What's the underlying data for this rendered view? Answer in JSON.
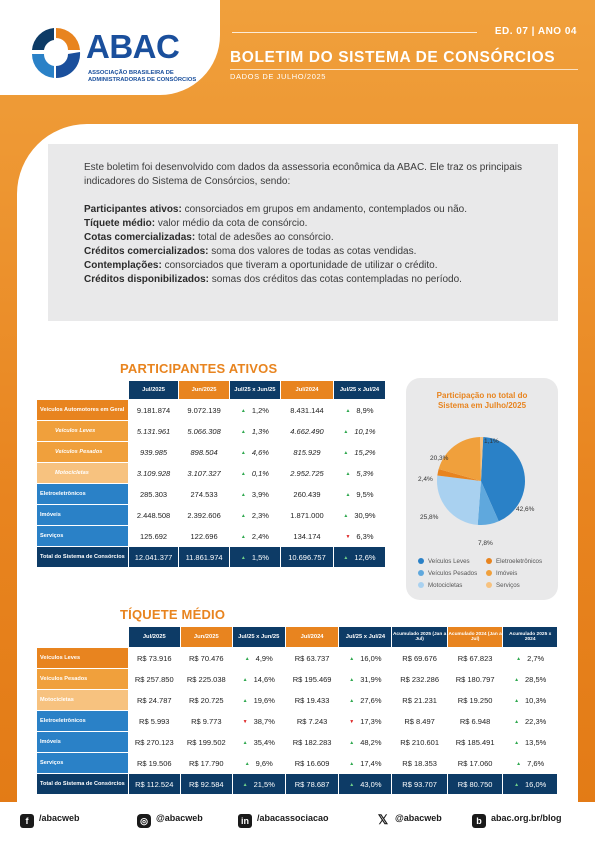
{
  "header": {
    "logo_name": "ABAC",
    "logo_sub_1": "ASSOCIAÇÃO BRASILEIRA DE",
    "logo_sub_2": "ADMINISTRADORAS DE CONSÓRCIOS",
    "edition": "ED. 07 | ANO 04",
    "title": "BOLETIM DO SISTEMA DE CONSÓRCIOS",
    "subtitle": "DADOS DE JULHO/2025"
  },
  "intro": {
    "lead": "Este boletim foi desenvolvido com dados da assessoria econômica da ABAC. Ele traz os principais indicadores do Sistema de Consórcios, sendo:",
    "defs": [
      {
        "term": "Participantes ativos:",
        "text": " consorciados em grupos em andamento, contemplados ou não."
      },
      {
        "term": "Tíquete médio:",
        "text": " valor médio da cota de consórcio."
      },
      {
        "term": "Cotas comercializadas:",
        "text": " total de adesões ao consórcio."
      },
      {
        "term": "Créditos comercializados:",
        "text": " soma dos valores de todas as cotas vendidas."
      },
      {
        "term": "Contemplações:",
        "text": " consorciados que tiveram a oportunidade de utilizar o crédito."
      },
      {
        "term": "Créditos disponibilizados:",
        "text": " somas dos créditos das cotas contempladas no período."
      }
    ]
  },
  "participantes": {
    "title": "PARTICIPANTES ATIVOS",
    "headers": [
      "Jul/2025",
      "Jun/2025",
      "Jul/25 x Jun/25",
      "Jul/2024",
      "Jul/25 x Jul/24"
    ],
    "rows": [
      {
        "label": "Veículos Automotores em Geral",
        "v": [
          "9.181.874",
          "9.072.139",
          "1,2%",
          "8.431.144",
          "8,9%"
        ],
        "d1": "up",
        "d2": "up"
      },
      {
        "label": "Veículos Leves",
        "v": [
          "5.131.961",
          "5.066.308",
          "1,3%",
          "4.662.490",
          "10,1%"
        ],
        "d1": "up",
        "d2": "up"
      },
      {
        "label": "Veículos Pesados",
        "v": [
          "939.985",
          "898.504",
          "4,6%",
          "815.929",
          "15,2%"
        ],
        "d1": "up",
        "d2": "up"
      },
      {
        "label": "Motocicletas",
        "v": [
          "3.109.928",
          "3.107.327",
          "0,1%",
          "2.952.725",
          "5,3%"
        ],
        "d1": "up",
        "d2": "up"
      },
      {
        "label": "Eletroeletrônicos",
        "v": [
          "285.303",
          "274.533",
          "3,9%",
          "260.439",
          "9,5%"
        ],
        "d1": "up",
        "d2": "up"
      },
      {
        "label": "Imóveis",
        "v": [
          "2.448.508",
          "2.392.606",
          "2,3%",
          "1.871.000",
          "30,9%"
        ],
        "d1": "up",
        "d2": "up"
      },
      {
        "label": "Serviços",
        "v": [
          "125.692",
          "122.696",
          "2,4%",
          "134.174",
          "6,3%"
        ],
        "d1": "up",
        "d2": "dn"
      },
      {
        "label": "Total do Sistema de Consórcios",
        "v": [
          "12.041.377",
          "11.861.974",
          "1,5%",
          "10.696.757",
          "12,6%"
        ],
        "d1": "up",
        "d2": "up"
      }
    ]
  },
  "pie": {
    "title_1": "Participação no total do",
    "title_2": "Sistema em Julho/2025",
    "labels": [
      "42,6%",
      "7,8%",
      "25,8%",
      "2,4%",
      "20,3%",
      "1,1%"
    ],
    "legend": [
      "Veículos Leves",
      "Eletroeletrônicos",
      "Veículos Pesados",
      "Imóveis",
      "Motocicletas",
      "Serviços"
    ],
    "colors": [
      "#2a81c7",
      "#e8841f",
      "#5fa8dd",
      "#f0a03c",
      "#a9d1f0",
      "#f7c27f"
    ]
  },
  "ticket": {
    "title": "TÍQUETE MÉDIO",
    "headers": [
      "Jul/2025",
      "Jun/2025",
      "Jul/25 x Jun/25",
      "Jul/2024",
      "Jul/25 x Jul/24",
      "Acumulado 2025 (Jan a Jul)",
      "Acumulado 2024 (Jan a Jul)",
      "Acumulado 2025 x 2024"
    ],
    "rows": [
      {
        "label": "Veículos Leves",
        "v": [
          "R$ 73.916",
          "R$ 70.476",
          "4,9%",
          "R$ 63.737",
          "16,0%",
          "R$ 69.676",
          "R$ 67.823",
          "2,7%"
        ],
        "d": [
          "up",
          "up",
          "up"
        ]
      },
      {
        "label": "Veículos Pesados",
        "v": [
          "R$ 257.850",
          "R$ 225.038",
          "14,6%",
          "R$ 195.469",
          "31,9%",
          "R$ 232.286",
          "R$ 180.797",
          "28,5%"
        ],
        "d": [
          "up",
          "up",
          "up"
        ]
      },
      {
        "label": "Motocicletas",
        "v": [
          "R$ 24.787",
          "R$ 20.725",
          "19,6%",
          "R$ 19.433",
          "27,6%",
          "R$ 21.231",
          "R$ 19.250",
          "10,3%"
        ],
        "d": [
          "up",
          "up",
          "up"
        ]
      },
      {
        "label": "Eletroeletrônicos",
        "v": [
          "R$ 5.993",
          "R$ 9.773",
          "38,7%",
          "R$ 7.243",
          "17,3%",
          "R$ 8.497",
          "R$ 6.948",
          "22,3%"
        ],
        "d": [
          "dn",
          "dn",
          "up"
        ]
      },
      {
        "label": "Imóveis",
        "v": [
          "R$ 270.123",
          "R$ 199.502",
          "35,4%",
          "R$ 182.283",
          "48,2%",
          "R$ 210.601",
          "R$ 185.491",
          "13,5%"
        ],
        "d": [
          "up",
          "up",
          "up"
        ]
      },
      {
        "label": "Serviços",
        "v": [
          "R$ 19.506",
          "R$ 17.790",
          "9,6%",
          "R$ 16.609",
          "17,4%",
          "R$ 18.353",
          "R$ 17.060",
          "7,6%"
        ],
        "d": [
          "up",
          "up",
          "up"
        ]
      },
      {
        "label": "Total do Sistema de Consórcios",
        "v": [
          "R$ 112.524",
          "R$ 92.584",
          "21,5%",
          "R$ 78.687",
          "43,0%",
          "R$ 93.707",
          "R$ 80.750",
          "16,0%"
        ],
        "d": [
          "up",
          "up",
          "up"
        ]
      }
    ]
  },
  "footer": {
    "facebook": "/abacweb",
    "instagram": "@abacweb",
    "linkedin": "/abacassociacao",
    "x": "@abacweb",
    "blog": "abac.org.br/blog"
  }
}
